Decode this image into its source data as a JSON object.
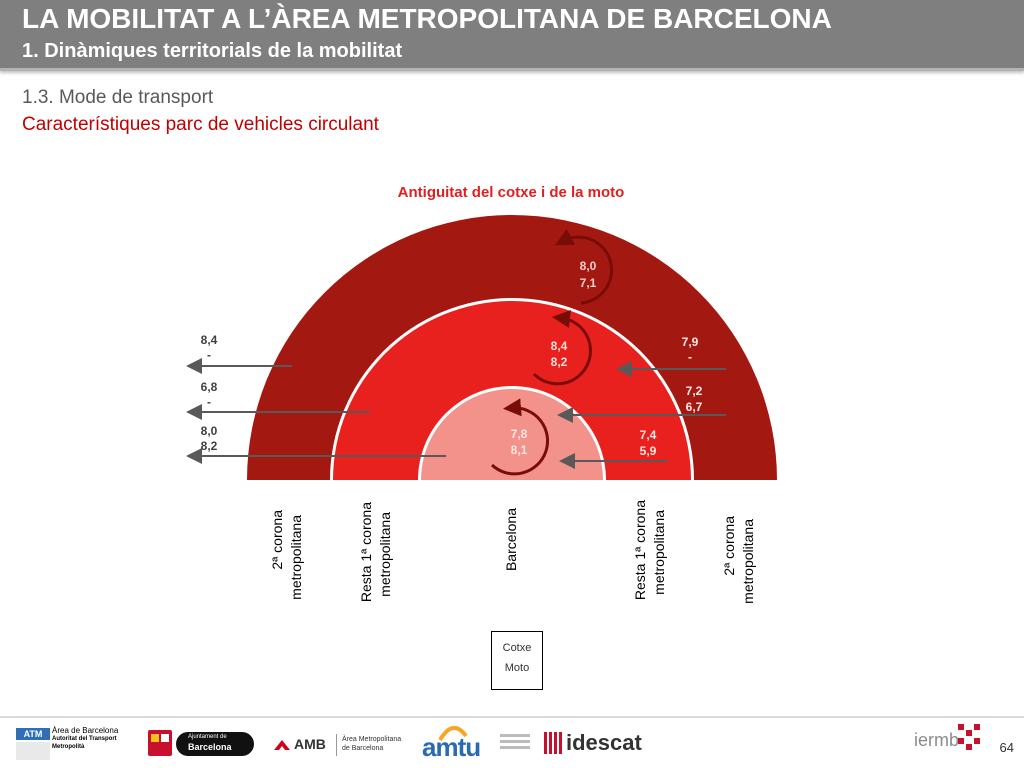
{
  "header": {
    "title": "LA MOBILITAT A L’ÀREA METROPOLITANA DE BARCELONA",
    "subtitle": "1. Dinàmiques territorials de la mobilitat"
  },
  "section": {
    "title": "1.3. Mode de transport",
    "subtitle": "Característiques parc de vehicles circulant"
  },
  "diagram": {
    "title": "Antiguitat del cotxe i de la moto",
    "rings": {
      "outer": {
        "car": "8,0",
        "moto": "7,1",
        "color": "#a31912"
      },
      "middle": {
        "car": "8,4",
        "moto": "8,2",
        "color": "#e8201e"
      },
      "inner": {
        "car": "7,8",
        "moto": "8,1",
        "color": "#f3928b"
      }
    },
    "left_labels": [
      {
        "car": "8,4",
        "moto": "-"
      },
      {
        "car": "6,8",
        "moto": "-"
      },
      {
        "car": "8,0",
        "moto": "8,2"
      }
    ],
    "right_labels": [
      {
        "car": "7,9",
        "moto": "-"
      },
      {
        "car": "7,2",
        "moto": "6,7"
      },
      {
        "car": "7,4",
        "moto": "5,9"
      }
    ],
    "zones": {
      "left_outer": [
        "2ª corona",
        "metropolitana"
      ],
      "left_middle": [
        "Resta 1ª corona",
        "metropolitana"
      ],
      "center": [
        "Barcelona"
      ],
      "right_middle": [
        "Resta 1ª corona",
        "metropolitana"
      ],
      "right_outer": [
        "2ª corona",
        "metropolitana"
      ]
    },
    "legend": {
      "car": "Cotxe",
      "moto": "Moto"
    }
  },
  "footer": {
    "page_number": "64",
    "logos": {
      "atm": [
        "ATM",
        "Àrea de Barcelona",
        "Autoritat del Transport",
        "Metropolità"
      ],
      "ajuntament": [
        "Ajuntament de",
        "Barcelona"
      ],
      "amb": [
        "AMB",
        "Àrea Metropolitana",
        "de Barcelona"
      ],
      "amtu": "amtu",
      "idescat": "idescat",
      "iermb": "iermb"
    }
  },
  "colors": {
    "header_bg": "#7f7f7f",
    "accent_red": "#c00000",
    "title_red": "#e02020"
  }
}
